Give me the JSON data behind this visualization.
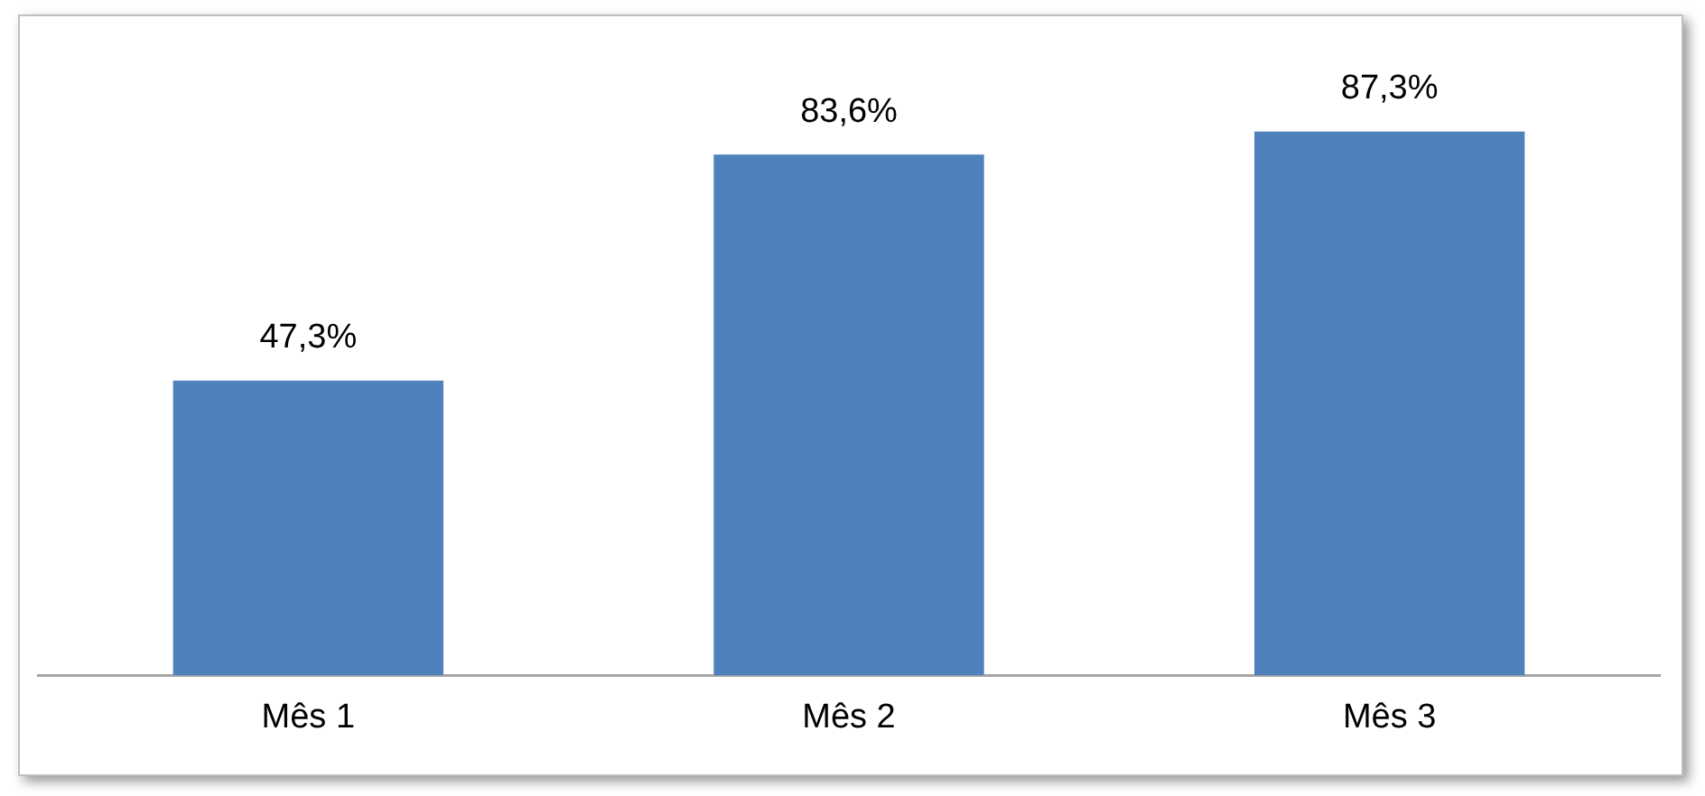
{
  "chart_data": {
    "type": "bar",
    "categories": [
      "Mês 1",
      "Mês 2",
      "Mês 3"
    ],
    "values": [
      47.3,
      83.6,
      87.3
    ],
    "color": "#4f81bd",
    "value_labels": [
      "47,3%",
      "83,6%",
      "87,3%"
    ],
    "legend": false
  }
}
